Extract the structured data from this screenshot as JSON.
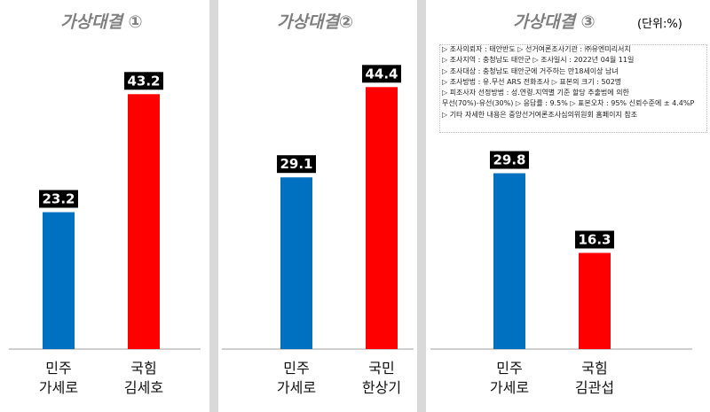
{
  "unit_label": "(단위:%)",
  "panels": [
    {
      "title": "가상대결 ①"
    },
    {
      "title": "가상대결②"
    },
    {
      "title": "가상대결 ③"
    }
  ],
  "survey_notes": [
    "▷ 조사의뢰자 : 태안반도 ▷ 선거여론조사기관 : ㈜유엔미리서치",
    "▷ 조사지역 : 충청남도 태안군 ▷ 조사일시 : 2022년 04월 11일",
    "▷ 조사대상 : 충청남도 태안군에 거주하는 만18세이상 남녀",
    "▷ 조사방법 : 유.무선 ARS 전화조사 ▷ 표본의 크기 : 502명",
    "▷ 피조사자 선정방법 : 성.연령.지역별 기준 할당 추출법에 의한",
    "무선(70%)-유선(30%) ▷ 응답률 : 9.5% ▷ 표본오차 : 95% 신뢰수준에 ± 4.4%P",
    "▷ 기타 자세한 내용은 중앙선거여론조사심의위원회 홈페이지 참조"
  ],
  "chart_data": [
    {
      "type": "bar",
      "title": "가상대결 ①",
      "categories": [
        "민주\n가세로",
        "국힘\n김세호"
      ],
      "category_lines": [
        [
          "민주",
          "가세로"
        ],
        [
          "국힘",
          "김세호"
        ]
      ],
      "values": [
        23.2,
        43.2
      ],
      "value_labels": [
        "23.2",
        "43.2"
      ],
      "colors": [
        "#0070c0",
        "#ff0000"
      ],
      "ylim": [
        0,
        50
      ]
    },
    {
      "type": "bar",
      "title": "가상대결②",
      "categories": [
        "민주\n가세로",
        "국민\n한상기"
      ],
      "category_lines": [
        [
          "민주",
          "가세로"
        ],
        [
          "국민",
          "한상기"
        ]
      ],
      "values": [
        29.1,
        44.4
      ],
      "value_labels": [
        "29.1",
        "44.4"
      ],
      "colors": [
        "#0070c0",
        "#ff0000"
      ],
      "ylim": [
        0,
        50
      ]
    },
    {
      "type": "bar",
      "title": "가상대결 ③",
      "categories": [
        "민주\n가세로",
        "국힘\n김관섭"
      ],
      "category_lines": [
        [
          "민주",
          "가세로"
        ],
        [
          "국힘",
          "김관섭"
        ]
      ],
      "values": [
        29.8,
        16.3
      ],
      "value_labels": [
        "29.8",
        "16.3"
      ],
      "colors": [
        "#0070c0",
        "#ff0000"
      ],
      "ylim": [
        0,
        50
      ]
    }
  ]
}
